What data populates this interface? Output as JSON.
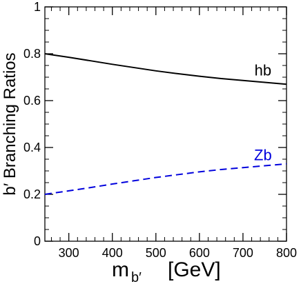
{
  "chart_data": {
    "type": "line",
    "xlabel": {
      "main": "m",
      "sub": "b′",
      "unit": "[GeV]"
    },
    "ylabel": "b′ Branching Ratios",
    "xlim": [
      245,
      800
    ],
    "ylim": [
      0,
      1
    ],
    "x_ticks": [
      300,
      400,
      500,
      600,
      700,
      800
    ],
    "y_ticks": [
      0,
      0.2,
      0.4,
      0.6,
      0.8,
      1
    ],
    "y_tick_labels": [
      "0",
      "0.2",
      "0.4",
      "0.6",
      "0.8",
      "1"
    ],
    "x_minor_step": 20,
    "y_minor_step": 0.05,
    "grid": false,
    "series": [
      {
        "name": "hb",
        "color": "#000000",
        "dash": "solid",
        "x": [
          245,
          300,
          350,
          400,
          450,
          500,
          550,
          600,
          650,
          700,
          750,
          800
        ],
        "y": [
          0.8,
          0.785,
          0.77,
          0.755,
          0.741,
          0.727,
          0.715,
          0.704,
          0.694,
          0.686,
          0.678,
          0.67
        ]
      },
      {
        "name": "Zb",
        "color": "#0000dd",
        "dash": "dashed",
        "x": [
          245,
          300,
          350,
          400,
          450,
          500,
          550,
          600,
          650,
          700,
          750,
          800
        ],
        "y": [
          0.2,
          0.215,
          0.229,
          0.244,
          0.258,
          0.272,
          0.284,
          0.296,
          0.306,
          0.314,
          0.322,
          0.33
        ]
      }
    ]
  }
}
